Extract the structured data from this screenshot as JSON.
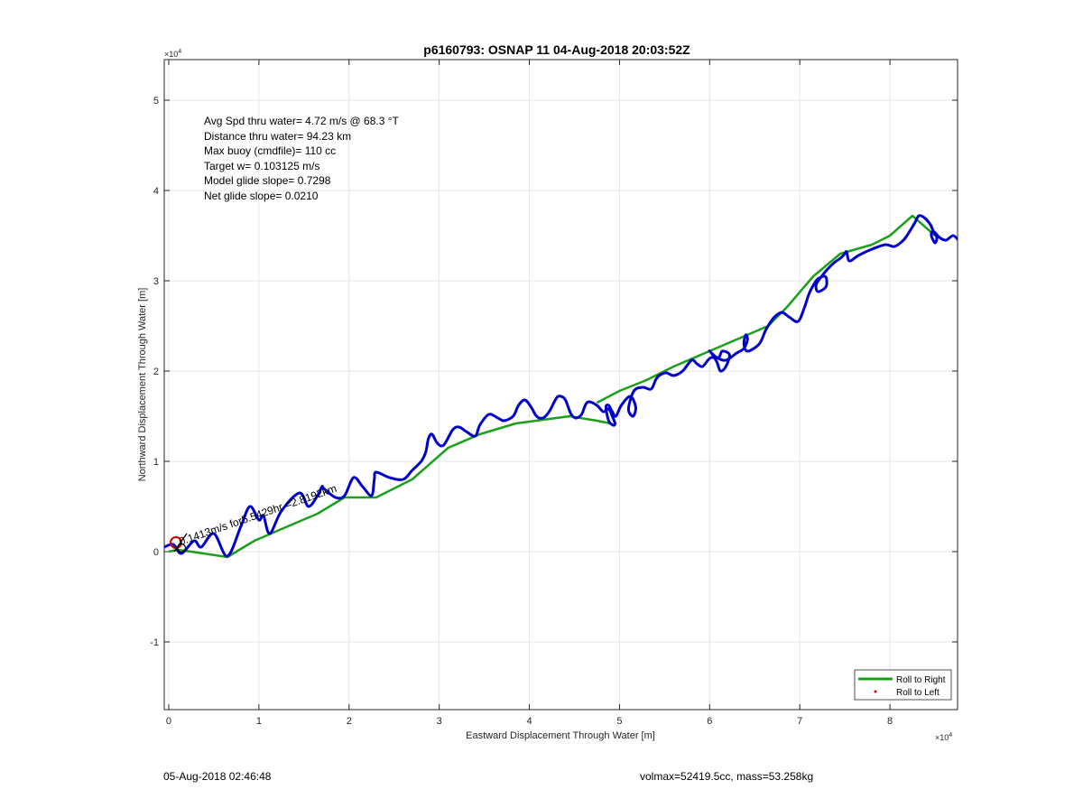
{
  "chart_data": {
    "type": "line",
    "title": "p6160793: OSNAP 11 04-Aug-2018 20:03:52Z",
    "xlabel": "Eastward Displacement Through Water [m]",
    "ylabel": "Northward Displacement Through Water [m]",
    "x_exponent_label": "×10",
    "x_exponent_power": "4",
    "y_exponent_label": "×10",
    "y_exponent_power": "4",
    "xlim": [
      -0.05,
      8.75
    ],
    "ylim": [
      -1.75,
      5.45
    ],
    "x_ticks": [
      0,
      1,
      2,
      3,
      4,
      5,
      6,
      7,
      8
    ],
    "y_ticks": [
      -1,
      0,
      1,
      2,
      3,
      4,
      5
    ],
    "x_tick_labels": [
      "0",
      "1",
      "2",
      "3",
      "4",
      "5",
      "6",
      "7",
      "8"
    ],
    "y_tick_labels": [
      "-1",
      "0",
      "1",
      "2",
      "3",
      "4",
      "5"
    ],
    "grid": true,
    "legend_position": "bottom-right",
    "annotations": [
      "Avg Spd thru water=  4.72 m/s @  68.3 °T",
      "Distance thru water= 94.23 km",
      "Max buoy (cmdfile)= 110 cc",
      "Target w= 0.103125 m/s",
      "Model glide slope= 0.7298",
      "Net glide slope= 0.0210"
    ],
    "current_label": "0.1413m/s for5.5429hr =2.8192km",
    "series": [
      {
        "name": "Roll to Right",
        "color": "#1aa01a",
        "x": [
          0.0,
          0.1,
          0.25,
          0.65,
          0.95,
          1.25,
          1.65,
          1.95,
          2.3,
          2.7,
          3.1,
          3.45,
          3.85,
          4.45,
          4.75,
          4.9
        ],
        "y": [
          0.0,
          0.02,
          0.0,
          -0.06,
          0.12,
          0.25,
          0.42,
          0.6,
          0.6,
          0.8,
          1.15,
          1.3,
          1.42,
          1.5,
          1.45,
          1.42
        ]
      },
      {
        "name": "",
        "color": "#1aa01a",
        "x": [
          4.75,
          5.0,
          5.3,
          5.6,
          5.95,
          6.3,
          6.65,
          6.85,
          7.15,
          7.45,
          7.8,
          8.0,
          8.25,
          8.5
        ],
        "y": [
          1.65,
          1.78,
          1.9,
          2.05,
          2.2,
          2.35,
          2.5,
          2.7,
          3.05,
          3.3,
          3.4,
          3.5,
          3.72,
          3.5
        ]
      },
      {
        "name": "Roll to Left",
        "color": "#ff0000",
        "x": [],
        "y": []
      },
      {
        "name": "",
        "color": "#0000cc",
        "x": [
          -0.05,
          0.05,
          0.14,
          0.28,
          0.36,
          0.5,
          0.65,
          0.8,
          0.9,
          1.0,
          1.05,
          1.12,
          1.25,
          1.45,
          1.55,
          1.65,
          1.7,
          1.72,
          1.85,
          1.95,
          2.05,
          2.15,
          2.25,
          2.28,
          2.3,
          2.45,
          2.6,
          2.7,
          2.8,
          2.85,
          2.88,
          2.92,
          2.98,
          3.05,
          3.15,
          3.22,
          3.3,
          3.4,
          3.45,
          3.55,
          3.65,
          3.72,
          3.82,
          3.88,
          3.95,
          4.02,
          4.08,
          4.15,
          4.22,
          4.3,
          4.35,
          4.4,
          4.45,
          4.48,
          4.52,
          4.58,
          4.62,
          4.66,
          4.75,
          4.82,
          4.88,
          4.92,
          4.95,
          4.93,
          4.88,
          4.85,
          4.88,
          4.92,
          4.96,
          5.02,
          5.12,
          5.18,
          5.15,
          5.1,
          5.16,
          5.26,
          5.35,
          5.4,
          5.44,
          5.52,
          5.6,
          5.7,
          5.8,
          5.86,
          5.92,
          5.98,
          6.02,
          6.1,
          6.14,
          6.22,
          6.18,
          6.12,
          6.08,
          6.02,
          6.0,
          6.08,
          6.18,
          6.3,
          6.38,
          6.42,
          6.4,
          6.38,
          6.42,
          6.55,
          6.62,
          6.68,
          6.72,
          6.8,
          6.88,
          6.98,
          7.05,
          7.1,
          7.15,
          7.2,
          7.28,
          7.3,
          7.28,
          7.2,
          7.18,
          7.22,
          7.3,
          7.38,
          7.45,
          7.5,
          7.52,
          7.55,
          7.65,
          7.8,
          7.95,
          8.05,
          8.15,
          8.22,
          8.28,
          8.32,
          8.38,
          8.45,
          8.48,
          8.52,
          8.5,
          8.46,
          8.48,
          8.55,
          8.62,
          8.7,
          8.76
        ],
        "y": [
          0.05,
          0.08,
          -0.02,
          0.12,
          0.05,
          0.2,
          -0.05,
          0.28,
          0.5,
          0.35,
          0.4,
          0.2,
          0.45,
          0.65,
          0.5,
          0.62,
          0.72,
          0.7,
          0.6,
          0.62,
          0.82,
          0.72,
          0.62,
          0.8,
          0.88,
          0.82,
          0.8,
          0.9,
          1.0,
          1.1,
          1.25,
          1.3,
          1.2,
          1.18,
          1.35,
          1.38,
          1.33,
          1.28,
          1.4,
          1.52,
          1.48,
          1.45,
          1.5,
          1.62,
          1.68,
          1.6,
          1.5,
          1.48,
          1.55,
          1.7,
          1.72,
          1.68,
          1.55,
          1.5,
          1.48,
          1.52,
          1.62,
          1.66,
          1.62,
          1.55,
          1.58,
          1.5,
          1.42,
          1.4,
          1.45,
          1.6,
          1.62,
          1.55,
          1.5,
          1.62,
          1.72,
          1.6,
          1.5,
          1.58,
          1.78,
          1.82,
          1.8,
          1.9,
          1.95,
          1.98,
          1.95,
          2.0,
          2.12,
          2.08,
          2.05,
          2.12,
          2.15,
          2.15,
          2.22,
          2.18,
          2.05,
          2.0,
          2.1,
          2.2,
          2.22,
          2.15,
          2.12,
          2.2,
          2.25,
          2.35,
          2.4,
          2.3,
          2.22,
          2.3,
          2.45,
          2.55,
          2.6,
          2.65,
          2.6,
          2.55,
          2.7,
          2.85,
          2.95,
          3.02,
          3.05,
          2.98,
          2.92,
          2.88,
          2.95,
          3.02,
          3.12,
          3.2,
          3.25,
          3.3,
          3.32,
          3.22,
          3.28,
          3.35,
          3.4,
          3.38,
          3.45,
          3.55,
          3.65,
          3.72,
          3.7,
          3.62,
          3.55,
          3.48,
          3.42,
          3.5,
          3.55,
          3.48,
          3.45,
          3.5,
          3.45
        ]
      }
    ],
    "start_marker": {
      "x": 0.08,
      "y": 0.1,
      "color": "#cc0000"
    }
  },
  "footer": {
    "left": "05-Aug-2018 02:46:48",
    "right": "volmax=52419.5cc, mass=53.258kg"
  }
}
